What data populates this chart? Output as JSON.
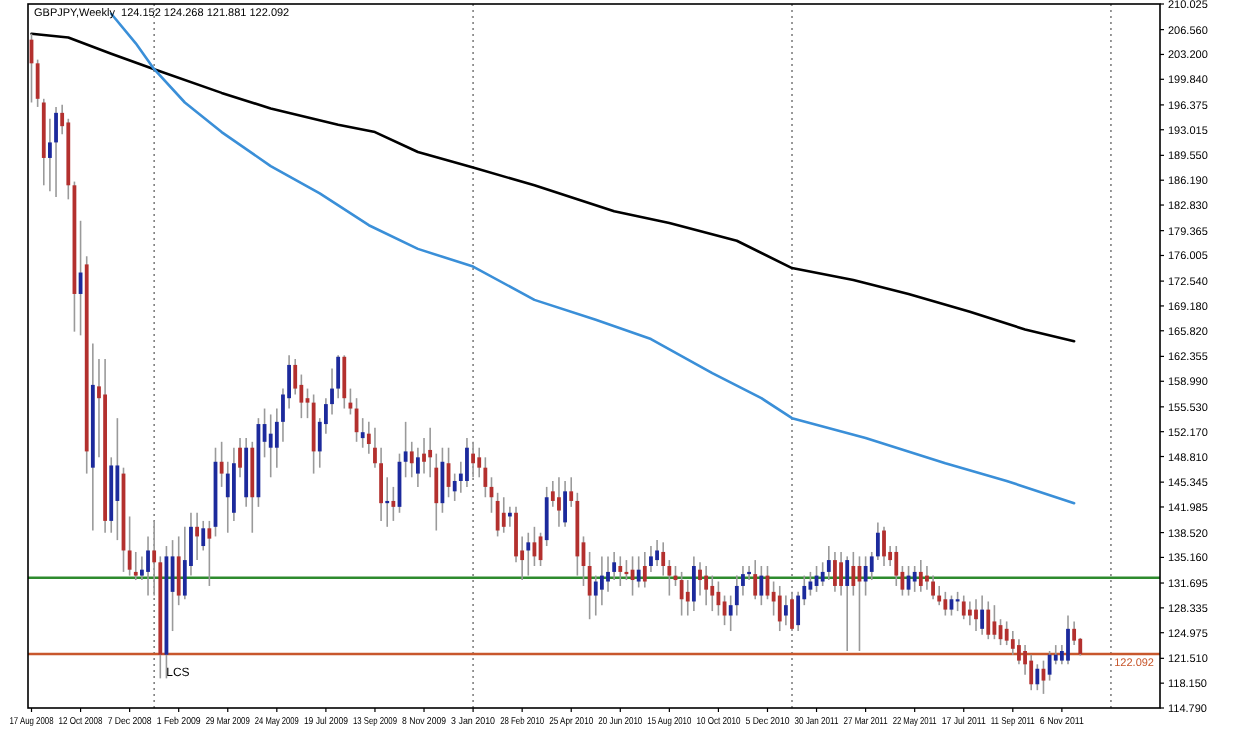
{
  "chart_data": {
    "type": "candlestick",
    "title": "GBPJPY,Weekly  124.152 124.268 121.881 122.092",
    "x": [
      "2008-08-17",
      "2008-08-24",
      "2008-08-31",
      "2008-09-07",
      "2008-09-14",
      "2008-09-21",
      "2008-09-28",
      "2008-10-05",
      "2008-10-12",
      "2008-10-19",
      "2008-10-26",
      "2008-11-02",
      "2008-11-09",
      "2008-11-16",
      "2008-11-23",
      "2008-11-30",
      "2008-12-07",
      "2008-12-14",
      "2008-12-21",
      "2008-12-28",
      "2009-01-04",
      "2009-01-11",
      "2009-01-18",
      "2009-01-25",
      "2009-02-01",
      "2009-02-08",
      "2009-02-15",
      "2009-02-22",
      "2009-03-01",
      "2009-03-08",
      "2009-03-15",
      "2009-03-22",
      "2009-03-29",
      "2009-04-05",
      "2009-04-12",
      "2009-04-19",
      "2009-04-26",
      "2009-05-03",
      "2009-05-10",
      "2009-05-17",
      "2009-05-24",
      "2009-05-31",
      "2009-06-07",
      "2009-06-14",
      "2009-06-21",
      "2009-06-28",
      "2009-07-05",
      "2009-07-12",
      "2009-07-19",
      "2009-07-26",
      "2009-08-02",
      "2009-08-09",
      "2009-08-16",
      "2009-08-23",
      "2009-08-30",
      "2009-09-06",
      "2009-09-13",
      "2009-09-20",
      "2009-09-27",
      "2009-10-04",
      "2009-10-11",
      "2009-10-18",
      "2009-10-25",
      "2009-11-01",
      "2009-11-08",
      "2009-11-15",
      "2009-11-22",
      "2009-11-29",
      "2009-12-06",
      "2009-12-13",
      "2009-12-20",
      "2009-12-27",
      "2010-01-03",
      "2010-01-10",
      "2010-01-17",
      "2010-01-24",
      "2010-01-31",
      "2010-02-07",
      "2010-02-14",
      "2010-02-21",
      "2010-02-28",
      "2010-03-07",
      "2010-03-14",
      "2010-03-21",
      "2010-03-28",
      "2010-04-04",
      "2010-04-11",
      "2010-04-18",
      "2010-04-25",
      "2010-05-02",
      "2010-05-09",
      "2010-05-16",
      "2010-05-23",
      "2010-05-30",
      "2010-06-06",
      "2010-06-13",
      "2010-06-20",
      "2010-06-27",
      "2010-07-04",
      "2010-07-11",
      "2010-07-18",
      "2010-07-25",
      "2010-08-01",
      "2010-08-08",
      "2010-08-15",
      "2010-08-22",
      "2010-08-29",
      "2010-09-05",
      "2010-09-12",
      "2010-09-19",
      "2010-09-26",
      "2010-10-03",
      "2010-10-10",
      "2010-10-17",
      "2010-10-24",
      "2010-10-31",
      "2010-11-07",
      "2010-11-14",
      "2010-11-21",
      "2010-11-28",
      "2010-12-05",
      "2010-12-12",
      "2010-12-19",
      "2010-12-26",
      "2011-01-02",
      "2011-01-09",
      "2011-01-16",
      "2011-01-23",
      "2011-01-30",
      "2011-02-06",
      "2011-02-13",
      "2011-02-20",
      "2011-02-27",
      "2011-03-06",
      "2011-03-13",
      "2011-03-20",
      "2011-03-27",
      "2011-04-03",
      "2011-04-10",
      "2011-04-17",
      "2011-04-24",
      "2011-05-01",
      "2011-05-08",
      "2011-05-15",
      "2011-05-22",
      "2011-05-29",
      "2011-06-05",
      "2011-06-12",
      "2011-06-19",
      "2011-06-26",
      "2011-07-03",
      "2011-07-10",
      "2011-07-17",
      "2011-07-24",
      "2011-07-31",
      "2011-08-07",
      "2011-08-14",
      "2011-08-21",
      "2011-08-28",
      "2011-09-04",
      "2011-09-11",
      "2011-09-18",
      "2011-09-25",
      "2011-10-02",
      "2011-10-09",
      "2011-10-16",
      "2011-10-23",
      "2011-10-30",
      "2011-11-06",
      "2011-11-13",
      "2011-11-20",
      "2011-11-27"
    ],
    "ohlc": [
      [
        205.2,
        206.0,
        196.7,
        202.0
      ],
      [
        202.0,
        202.5,
        196.1,
        197.2
      ],
      [
        196.7,
        197.2,
        185.5,
        189.2
      ],
      [
        189.2,
        194.5,
        184.7,
        191.3
      ],
      [
        191.3,
        196.1,
        183.9,
        195.3
      ],
      [
        195.3,
        196.4,
        192.4,
        193.5
      ],
      [
        194.0,
        194.5,
        183.6,
        185.5
      ],
      [
        185.5,
        186.0,
        165.7,
        170.8
      ],
      [
        170.8,
        180.7,
        165.2,
        173.7
      ],
      [
        174.8,
        175.9,
        146.5,
        149.5
      ],
      [
        147.3,
        164.1,
        138.8,
        158.5
      ],
      [
        158.3,
        162.0,
        148.7,
        156.7
      ],
      [
        157.2,
        162.0,
        138.5,
        140.1
      ],
      [
        140.1,
        148.7,
        138.5,
        147.6
      ],
      [
        142.8,
        154.0,
        137.5,
        147.6
      ],
      [
        146.5,
        147.3,
        133.2,
        136.1
      ],
      [
        136.1,
        140.7,
        132.7,
        133.5
      ],
      [
        133.2,
        135.9,
        132.1,
        132.7
      ],
      [
        132.7,
        135.3,
        132.1,
        133.5
      ],
      [
        133.2,
        138.0,
        130.0,
        136.1
      ],
      [
        136.1,
        140.1,
        130.0,
        134.5
      ],
      [
        134.5,
        135.3,
        118.8,
        122.0
      ],
      [
        122.0,
        136.7,
        118.8,
        135.3
      ],
      [
        130.5,
        137.5,
        125.2,
        135.3
      ],
      [
        135.3,
        138.0,
        128.7,
        130.0
      ],
      [
        130.0,
        139.3,
        129.5,
        134.8
      ],
      [
        134.0,
        141.2,
        132.7,
        139.3
      ],
      [
        139.3,
        141.2,
        134.8,
        138.0
      ],
      [
        136.7,
        140.1,
        136.1,
        139.1
      ],
      [
        139.1,
        140.1,
        131.3,
        137.7
      ],
      [
        139.3,
        150.0,
        138.0,
        148.1
      ],
      [
        148.1,
        150.8,
        144.7,
        146.5
      ],
      [
        143.3,
        148.1,
        138.5,
        146.5
      ],
      [
        141.2,
        150.0,
        140.1,
        147.9
      ],
      [
        150.0,
        151.3,
        146.0,
        147.3
      ],
      [
        143.3,
        151.3,
        142.0,
        150.0
      ],
      [
        150.0,
        150.8,
        138.5,
        143.3
      ],
      [
        143.3,
        154.0,
        142.0,
        153.2
      ],
      [
        150.8,
        155.3,
        148.7,
        153.2
      ],
      [
        150.0,
        154.5,
        146.0,
        151.9
      ],
      [
        150.0,
        155.3,
        147.3,
        153.5
      ],
      [
        153.5,
        158.0,
        150.8,
        157.2
      ],
      [
        156.7,
        162.5,
        155.3,
        161.2
      ],
      [
        161.2,
        162.0,
        157.2,
        158.0
      ],
      [
        158.5,
        159.9,
        154.0,
        156.1
      ],
      [
        156.7,
        158.0,
        154.0,
        156.1
      ],
      [
        156.1,
        157.2,
        146.5,
        149.5
      ],
      [
        149.5,
        154.0,
        147.3,
        153.5
      ],
      [
        153.2,
        156.7,
        151.9,
        155.9
      ],
      [
        155.9,
        160.7,
        154.5,
        158.0
      ],
      [
        158.0,
        162.5,
        156.7,
        162.3
      ],
      [
        162.3,
        162.5,
        155.3,
        156.7
      ],
      [
        156.1,
        158.0,
        154.5,
        155.3
      ],
      [
        155.3,
        156.7,
        150.8,
        152.1
      ],
      [
        151.3,
        154.0,
        150.0,
        152.1
      ],
      [
        151.9,
        153.5,
        149.2,
        150.5
      ],
      [
        150.0,
        152.7,
        147.3,
        147.9
      ],
      [
        147.9,
        150.0,
        140.1,
        142.5
      ],
      [
        142.5,
        146.0,
        139.3,
        142.8
      ],
      [
        142.8,
        144.7,
        140.1,
        142.0
      ],
      [
        142.0,
        149.2,
        141.2,
        148.1
      ],
      [
        148.1,
        153.5,
        146.0,
        149.5
      ],
      [
        149.5,
        150.8,
        146.0,
        147.9
      ],
      [
        146.5,
        150.0,
        144.7,
        148.7
      ],
      [
        149.2,
        151.3,
        146.5,
        148.1
      ],
      [
        149.7,
        152.7,
        146.0,
        148.7
      ],
      [
        147.3,
        149.2,
        138.8,
        142.5
      ],
      [
        142.5,
        150.0,
        141.2,
        148.1
      ],
      [
        147.9,
        150.0,
        143.3,
        144.7
      ],
      [
        144.1,
        146.5,
        142.8,
        145.5
      ],
      [
        145.5,
        148.1,
        143.9,
        146.5
      ],
      [
        145.5,
        151.3,
        144.7,
        150.0
      ],
      [
        149.2,
        150.8,
        146.0,
        147.9
      ],
      [
        148.7,
        150.0,
        146.0,
        147.3
      ],
      [
        147.3,
        148.7,
        143.3,
        144.7
      ],
      [
        144.7,
        146.0,
        141.2,
        143.3
      ],
      [
        142.8,
        143.9,
        138.0,
        138.8
      ],
      [
        141.2,
        143.3,
        138.5,
        139.3
      ],
      [
        140.7,
        142.0,
        139.3,
        141.2
      ],
      [
        141.2,
        142.0,
        134.5,
        135.3
      ],
      [
        136.1,
        138.0,
        132.1,
        134.8
      ],
      [
        136.1,
        138.5,
        132.7,
        137.2
      ],
      [
        137.2,
        139.3,
        134.0,
        135.3
      ],
      [
        138.0,
        138.5,
        134.0,
        134.8
      ],
      [
        137.5,
        144.7,
        136.7,
        143.3
      ],
      [
        144.1,
        145.5,
        142.0,
        142.8
      ],
      [
        143.3,
        146.0,
        139.3,
        141.5
      ],
      [
        139.9,
        145.5,
        139.3,
        144.1
      ],
      [
        144.1,
        146.0,
        142.0,
        142.8
      ],
      [
        142.8,
        143.9,
        132.7,
        135.3
      ],
      [
        137.2,
        138.0,
        131.3,
        134.0
      ],
      [
        134.0,
        135.9,
        126.8,
        130.0
      ],
      [
        130.0,
        132.7,
        127.3,
        131.9
      ],
      [
        130.8,
        135.3,
        128.7,
        132.7
      ],
      [
        131.9,
        135.3,
        130.5,
        133.2
      ],
      [
        133.2,
        135.9,
        132.1,
        134.5
      ],
      [
        134.0,
        135.3,
        131.3,
        133.2
      ],
      [
        133.2,
        134.8,
        132.1,
        132.9
      ],
      [
        133.5,
        135.3,
        130.0,
        132.1
      ],
      [
        131.9,
        135.3,
        131.1,
        133.5
      ],
      [
        134.0,
        135.9,
        131.1,
        131.9
      ],
      [
        134.0,
        136.7,
        133.2,
        135.3
      ],
      [
        134.8,
        137.5,
        134.0,
        136.1
      ],
      [
        135.9,
        137.2,
        132.7,
        134.0
      ],
      [
        134.0,
        134.8,
        130.0,
        132.7
      ],
      [
        132.7,
        134.0,
        131.3,
        132.1
      ],
      [
        132.1,
        133.2,
        127.3,
        129.5
      ],
      [
        130.5,
        132.1,
        127.3,
        129.2
      ],
      [
        129.2,
        135.3,
        127.9,
        134.0
      ],
      [
        133.5,
        134.5,
        130.0,
        132.1
      ],
      [
        132.7,
        134.0,
        128.7,
        130.8
      ],
      [
        131.3,
        132.7,
        127.9,
        130.0
      ],
      [
        130.5,
        131.9,
        127.3,
        128.7
      ],
      [
        129.2,
        130.0,
        126.0,
        127.3
      ],
      [
        127.3,
        130.0,
        125.2,
        128.7
      ],
      [
        128.7,
        132.7,
        127.3,
        131.3
      ],
      [
        131.3,
        134.0,
        130.0,
        132.9
      ],
      [
        132.9,
        134.0,
        132.1,
        133.2
      ],
      [
        132.9,
        134.8,
        129.5,
        130.0
      ],
      [
        130.0,
        134.0,
        128.7,
        132.7
      ],
      [
        132.7,
        134.0,
        129.5,
        130.0
      ],
      [
        130.5,
        131.9,
        127.3,
        129.2
      ],
      [
        130.0,
        131.3,
        125.2,
        126.5
      ],
      [
        127.3,
        130.0,
        126.0,
        128.7
      ],
      [
        129.5,
        130.5,
        125.2,
        125.5
      ],
      [
        126.0,
        130.5,
        125.2,
        130.0
      ],
      [
        129.5,
        132.7,
        128.7,
        131.3
      ],
      [
        130.8,
        133.2,
        130.0,
        131.9
      ],
      [
        131.3,
        134.0,
        130.5,
        132.7
      ],
      [
        131.9,
        134.5,
        131.3,
        133.2
      ],
      [
        133.2,
        136.7,
        132.1,
        134.8
      ],
      [
        134.8,
        135.9,
        130.5,
        131.3
      ],
      [
        134.5,
        135.9,
        130.0,
        131.3
      ],
      [
        131.3,
        135.3,
        122.5,
        134.8
      ],
      [
        134.0,
        135.9,
        130.0,
        131.3
      ],
      [
        134.0,
        135.3,
        122.5,
        131.9
      ],
      [
        131.9,
        135.3,
        130.0,
        134.0
      ],
      [
        133.2,
        135.9,
        132.1,
        135.3
      ],
      [
        135.3,
        139.9,
        134.8,
        138.5
      ],
      [
        138.8,
        139.3,
        134.0,
        135.3
      ],
      [
        135.9,
        136.7,
        134.0,
        134.8
      ],
      [
        135.9,
        136.7,
        131.3,
        132.7
      ],
      [
        133.2,
        134.0,
        130.0,
        130.8
      ],
      [
        130.8,
        134.0,
        130.0,
        132.7
      ],
      [
        131.9,
        134.0,
        130.5,
        133.2
      ],
      [
        133.2,
        134.8,
        130.5,
        131.3
      ],
      [
        132.7,
        134.0,
        130.8,
        131.9
      ],
      [
        131.9,
        132.7,
        129.5,
        130.0
      ],
      [
        130.0,
        131.3,
        128.7,
        129.2
      ],
      [
        129.5,
        130.5,
        127.3,
        128.1
      ],
      [
        128.1,
        130.0,
        127.3,
        129.5
      ],
      [
        129.2,
        130.5,
        127.9,
        129.5
      ],
      [
        129.2,
        130.0,
        126.8,
        127.3
      ],
      [
        128.1,
        129.2,
        126.0,
        127.3
      ],
      [
        128.1,
        129.5,
        125.2,
        126.8
      ],
      [
        125.5,
        130.0,
        124.7,
        128.1
      ],
      [
        128.1,
        129.2,
        124.1,
        124.7
      ],
      [
        126.5,
        128.7,
        124.1,
        124.7
      ],
      [
        126.0,
        126.8,
        123.3,
        124.1
      ],
      [
        125.5,
        126.5,
        123.3,
        123.9
      ],
      [
        124.1,
        125.2,
        122.0,
        122.8
      ],
      [
        123.3,
        124.1,
        120.7,
        121.2
      ],
      [
        122.5,
        123.3,
        119.3,
        120.7
      ],
      [
        121.2,
        122.0,
        117.2,
        118.0
      ],
      [
        118.0,
        120.7,
        117.2,
        120.1
      ],
      [
        120.1,
        121.2,
        116.7,
        118.5
      ],
      [
        119.3,
        122.5,
        118.5,
        122.0
      ],
      [
        121.2,
        123.3,
        120.7,
        122.0
      ],
      [
        121.2,
        123.3,
        120.7,
        122.5
      ],
      [
        121.2,
        127.3,
        120.7,
        125.5
      ],
      [
        125.5,
        126.5,
        123.3,
        123.9
      ],
      [
        124.152,
        124.268,
        121.881,
        122.092
      ]
    ],
    "series": [
      {
        "type": "line",
        "color": "#000000",
        "x": [
          "2008-08-17",
          "2008-09-28",
          "2008-11-16",
          "2009-01-04",
          "2009-03-22",
          "2009-05-17",
          "2009-08-02",
          "2009-09-13",
          "2009-11-01",
          "2010-01-03",
          "2010-03-14",
          "2010-06-13",
          "2010-08-15",
          "2010-10-31",
          "2011-01-02",
          "2011-03-13",
          "2011-05-15",
          "2011-07-24",
          "2011-09-25",
          "2011-11-20"
        ],
        "values": [
          206.0,
          205.5,
          203.3,
          201.2,
          198.0,
          195.9,
          193.7,
          192.7,
          190.0,
          187.9,
          185.5,
          182.0,
          180.4,
          178.0,
          174.3,
          172.7,
          170.8,
          168.4,
          166.0,
          164.4
        ]
      },
      {
        "type": "line",
        "color": "#3a8fd8",
        "x": [
          "2008-11-16",
          "2008-12-14",
          "2009-01-04",
          "2009-02-08",
          "2009-03-22",
          "2009-05-17",
          "2009-07-12",
          "2009-09-06",
          "2009-11-01",
          "2010-01-03",
          "2010-03-14",
          "2010-05-23",
          "2010-07-25",
          "2010-10-03",
          "2010-11-28",
          "2011-01-02",
          "2011-03-27",
          "2011-06-26",
          "2011-09-04",
          "2011-11-20"
        ],
        "values": [
          208.7,
          204.7,
          201.2,
          196.7,
          192.7,
          188.1,
          184.4,
          180.1,
          176.9,
          174.5,
          170.0,
          167.3,
          164.7,
          160.1,
          156.7,
          154.0,
          151.3,
          147.9,
          145.5,
          142.5
        ]
      }
    ],
    "xlim": [
      "2008-08-13",
      "2012-02-26"
    ],
    "xticks": [
      {
        "value": "2008-08-17",
        "label": "17 Aug 2008"
      },
      {
        "value": "2008-10-12",
        "label": "12 Oct 2008"
      },
      {
        "value": "2008-12-07",
        "label": "7 Dec 2008"
      },
      {
        "value": "2009-02-01",
        "label": "1 Feb 2009"
      },
      {
        "value": "2009-03-29",
        "label": "29 Mar 2009"
      },
      {
        "value": "2009-05-24",
        "label": "24 May 2009"
      },
      {
        "value": "2009-07-19",
        "label": "19 Jul 2009"
      },
      {
        "value": "2009-09-13",
        "label": "13 Sep 2009"
      },
      {
        "value": "2009-11-08",
        "label": "8 Nov 2009"
      },
      {
        "value": "2010-01-03",
        "label": "3 Jan 2010"
      },
      {
        "value": "2010-02-28",
        "label": "28 Feb 2010"
      },
      {
        "value": "2010-04-25",
        "label": "25 Apr 2010"
      },
      {
        "value": "2010-06-20",
        "label": "20 Jun 2010"
      },
      {
        "value": "2010-08-15",
        "label": "15 Aug 2010"
      },
      {
        "value": "2010-10-10",
        "label": "10 Oct 2010"
      },
      {
        "value": "2010-12-05",
        "label": "5 Dec 2010"
      },
      {
        "value": "2011-01-30",
        "label": "30 Jan 2011"
      },
      {
        "value": "2011-03-27",
        "label": "27 Mar 2011"
      },
      {
        "value": "2011-05-22",
        "label": "22 May 2011"
      },
      {
        "value": "2011-07-17",
        "label": "17 Jul 2011"
      },
      {
        "value": "2011-09-11",
        "label": "11 Sep 2011"
      },
      {
        "value": "2011-11-06",
        "label": "6 Nov 2011"
      }
    ],
    "ylim": [
      114.79,
      210.025
    ],
    "yticks": [
      {
        "value": 114.79,
        "label": "114.790"
      },
      {
        "value": 118.15,
        "label": "118.150"
      },
      {
        "value": 121.51,
        "label": "121.510"
      },
      {
        "value": 124.975,
        "label": "124.975"
      },
      {
        "value": 128.335,
        "label": "128.335"
      },
      {
        "value": 131.695,
        "label": "131.695"
      },
      {
        "value": 135.16,
        "label": "135.160"
      },
      {
        "value": 138.52,
        "label": "138.520"
      },
      {
        "value": 141.985,
        "label": "141.985"
      },
      {
        "value": 145.345,
        "label": "145.345"
      },
      {
        "value": 148.81,
        "label": "148.810"
      },
      {
        "value": 152.17,
        "label": "152.170"
      },
      {
        "value": 155.53,
        "label": "155.530"
      },
      {
        "value": 158.99,
        "label": "158.990"
      },
      {
        "value": 162.355,
        "label": "162.355"
      },
      {
        "value": 165.82,
        "label": "165.820"
      },
      {
        "value": 169.18,
        "label": "169.180"
      },
      {
        "value": 172.54,
        "label": "172.540"
      },
      {
        "value": 176.005,
        "label": "176.005"
      },
      {
        "value": 179.365,
        "label": "179.365"
      },
      {
        "value": 182.83,
        "label": "182.830"
      },
      {
        "value": 186.19,
        "label": "186.190"
      },
      {
        "value": 189.55,
        "label": "189.550"
      },
      {
        "value": 193.015,
        "label": "193.015"
      },
      {
        "value": 196.375,
        "label": "196.375"
      },
      {
        "value": 199.84,
        "label": "199.840"
      },
      {
        "value": 203.2,
        "label": "203.200"
      },
      {
        "value": 206.56,
        "label": "206.560"
      },
      {
        "value": 210.025,
        "label": "210.025"
      }
    ],
    "ref_lines": [
      {
        "axis": "y",
        "value": 132.4,
        "color": "#2e8b2e"
      },
      {
        "axis": "y",
        "value": 122.092,
        "label": "122.092",
        "color": "#c8572c"
      },
      {
        "axis": "x",
        "value": "2009-01-04",
        "color": "#808080",
        "line_style": "dotted"
      },
      {
        "axis": "x",
        "value": "2010-01-03",
        "color": "#808080",
        "line_style": "dotted"
      },
      {
        "axis": "x",
        "value": "2011-01-02",
        "color": "#808080",
        "line_style": "dotted"
      },
      {
        "axis": "x",
        "value": "2012-01-01",
        "color": "#808080",
        "line_style": "dotted"
      }
    ],
    "annotations": [
      {
        "text": "LCS",
        "x": "2009-01-11",
        "y": 119.9
      }
    ]
  }
}
